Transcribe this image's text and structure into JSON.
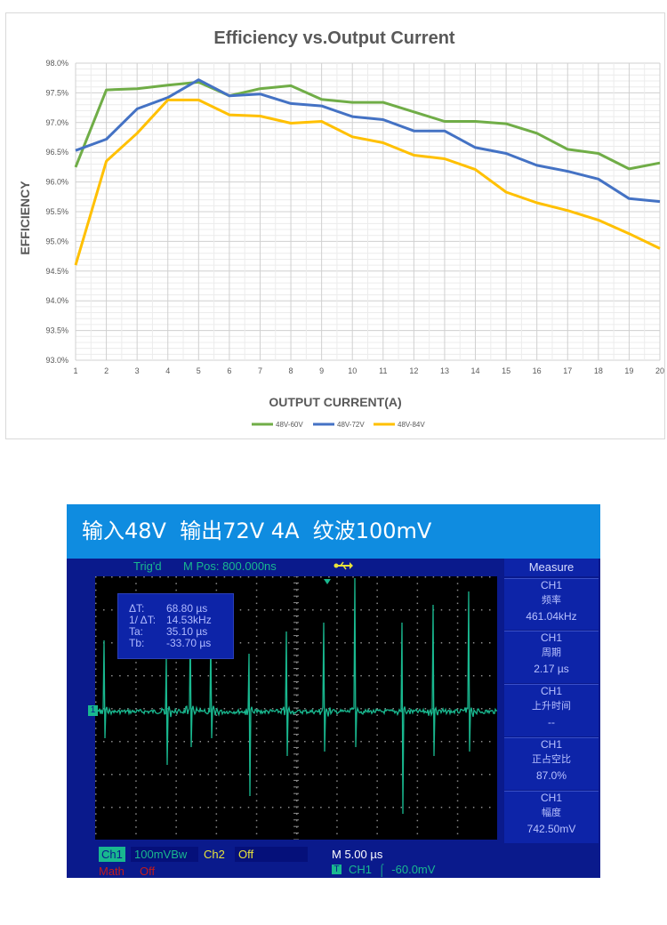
{
  "chart_data": {
    "type": "line",
    "title": "Efficiency vs.Output Current",
    "xlabel": "OUTPUT CURRENT(A)",
    "ylabel": "EFFICIENCY",
    "x": [
      1,
      2,
      3,
      4,
      5,
      6,
      7,
      8,
      9,
      10,
      11,
      12,
      13,
      14,
      15,
      16,
      17,
      18,
      19,
      20
    ],
    "xlim": [
      1,
      20
    ],
    "ylim": [
      93.0,
      98.0
    ],
    "yticks": [
      "93.0%",
      "93.5%",
      "94.0%",
      "94.5%",
      "95.0%",
      "95.5%",
      "96.0%",
      "96.5%",
      "97.0%",
      "97.5%",
      "98.0%"
    ],
    "xticks": [
      "1",
      "2",
      "3",
      "4",
      "5",
      "6",
      "7",
      "8",
      "9",
      "10",
      "11",
      "12",
      "13",
      "14",
      "15",
      "16",
      "17",
      "18",
      "19",
      "20"
    ],
    "grid": true,
    "legend_position": "bottom",
    "series": [
      {
        "name": "48V-60V",
        "color": "#70ad47",
        "values": [
          96.25,
          97.55,
          97.57,
          97.63,
          97.68,
          97.45,
          97.57,
          97.62,
          97.39,
          97.34,
          97.34,
          97.18,
          97.02,
          97.02,
          96.98,
          96.82,
          96.55,
          96.48,
          96.22,
          96.32
        ]
      },
      {
        "name": "48V-72V",
        "color": "#4472c4",
        "values": [
          96.53,
          96.72,
          97.23,
          97.42,
          97.72,
          97.45,
          97.48,
          97.32,
          97.28,
          97.1,
          97.05,
          96.86,
          96.86,
          96.58,
          96.48,
          96.28,
          96.18,
          96.05,
          95.72,
          95.67
        ]
      },
      {
        "name": "48V-84V",
        "color": "#ffc000",
        "values": [
          94.6,
          96.35,
          96.82,
          97.38,
          97.38,
          97.13,
          97.11,
          96.99,
          97.02,
          96.76,
          96.66,
          96.45,
          96.39,
          96.21,
          95.83,
          95.65,
          95.52,
          95.36,
          95.13,
          94.88
        ]
      }
    ]
  },
  "scope": {
    "header": "输入48V  输出72V 4A  纹波100mV",
    "status": {
      "trig": "Trig'd",
      "mpos": "M Pos: 800.000ns"
    },
    "cursor": {
      "rows": [
        {
          "key": "ΔT:",
          "val": "68.80 µs"
        },
        {
          "key": "1/ ΔT:",
          "val": "14.53kHz"
        },
        {
          "key": "Ta:",
          "val": "35.10 µs"
        },
        {
          "key": "Tb:",
          "val": "-33.70 µs"
        }
      ]
    },
    "channel_marker": "1",
    "measure": {
      "title": "Measure",
      "items": [
        {
          "ch": "CH1",
          "label": "频率",
          "value": "461.04kHz"
        },
        {
          "ch": "CH1",
          "label": "周期",
          "value": "2.17 µs"
        },
        {
          "ch": "CH1",
          "label": "上升时间",
          "value": "--"
        },
        {
          "ch": "CH1",
          "label": "正占空比",
          "value": "87.0%"
        },
        {
          "ch": "CH1",
          "label": "幅度",
          "value": "742.50mV"
        }
      ]
    },
    "bottom": {
      "ch1": "Ch1",
      "ch1_scale": "100mVBw",
      "ch2": "Ch2",
      "ch2_scale": "Off",
      "math": "Math",
      "math_scale": "Off",
      "timebase": "M 5.00 µs",
      "trig_marker": "T",
      "trig_info": "CH1  ⌠  -60.0mV"
    },
    "colors": {
      "trace": "#19b88f",
      "background": "#0a1a8c",
      "header": "#0f8ce0"
    }
  }
}
